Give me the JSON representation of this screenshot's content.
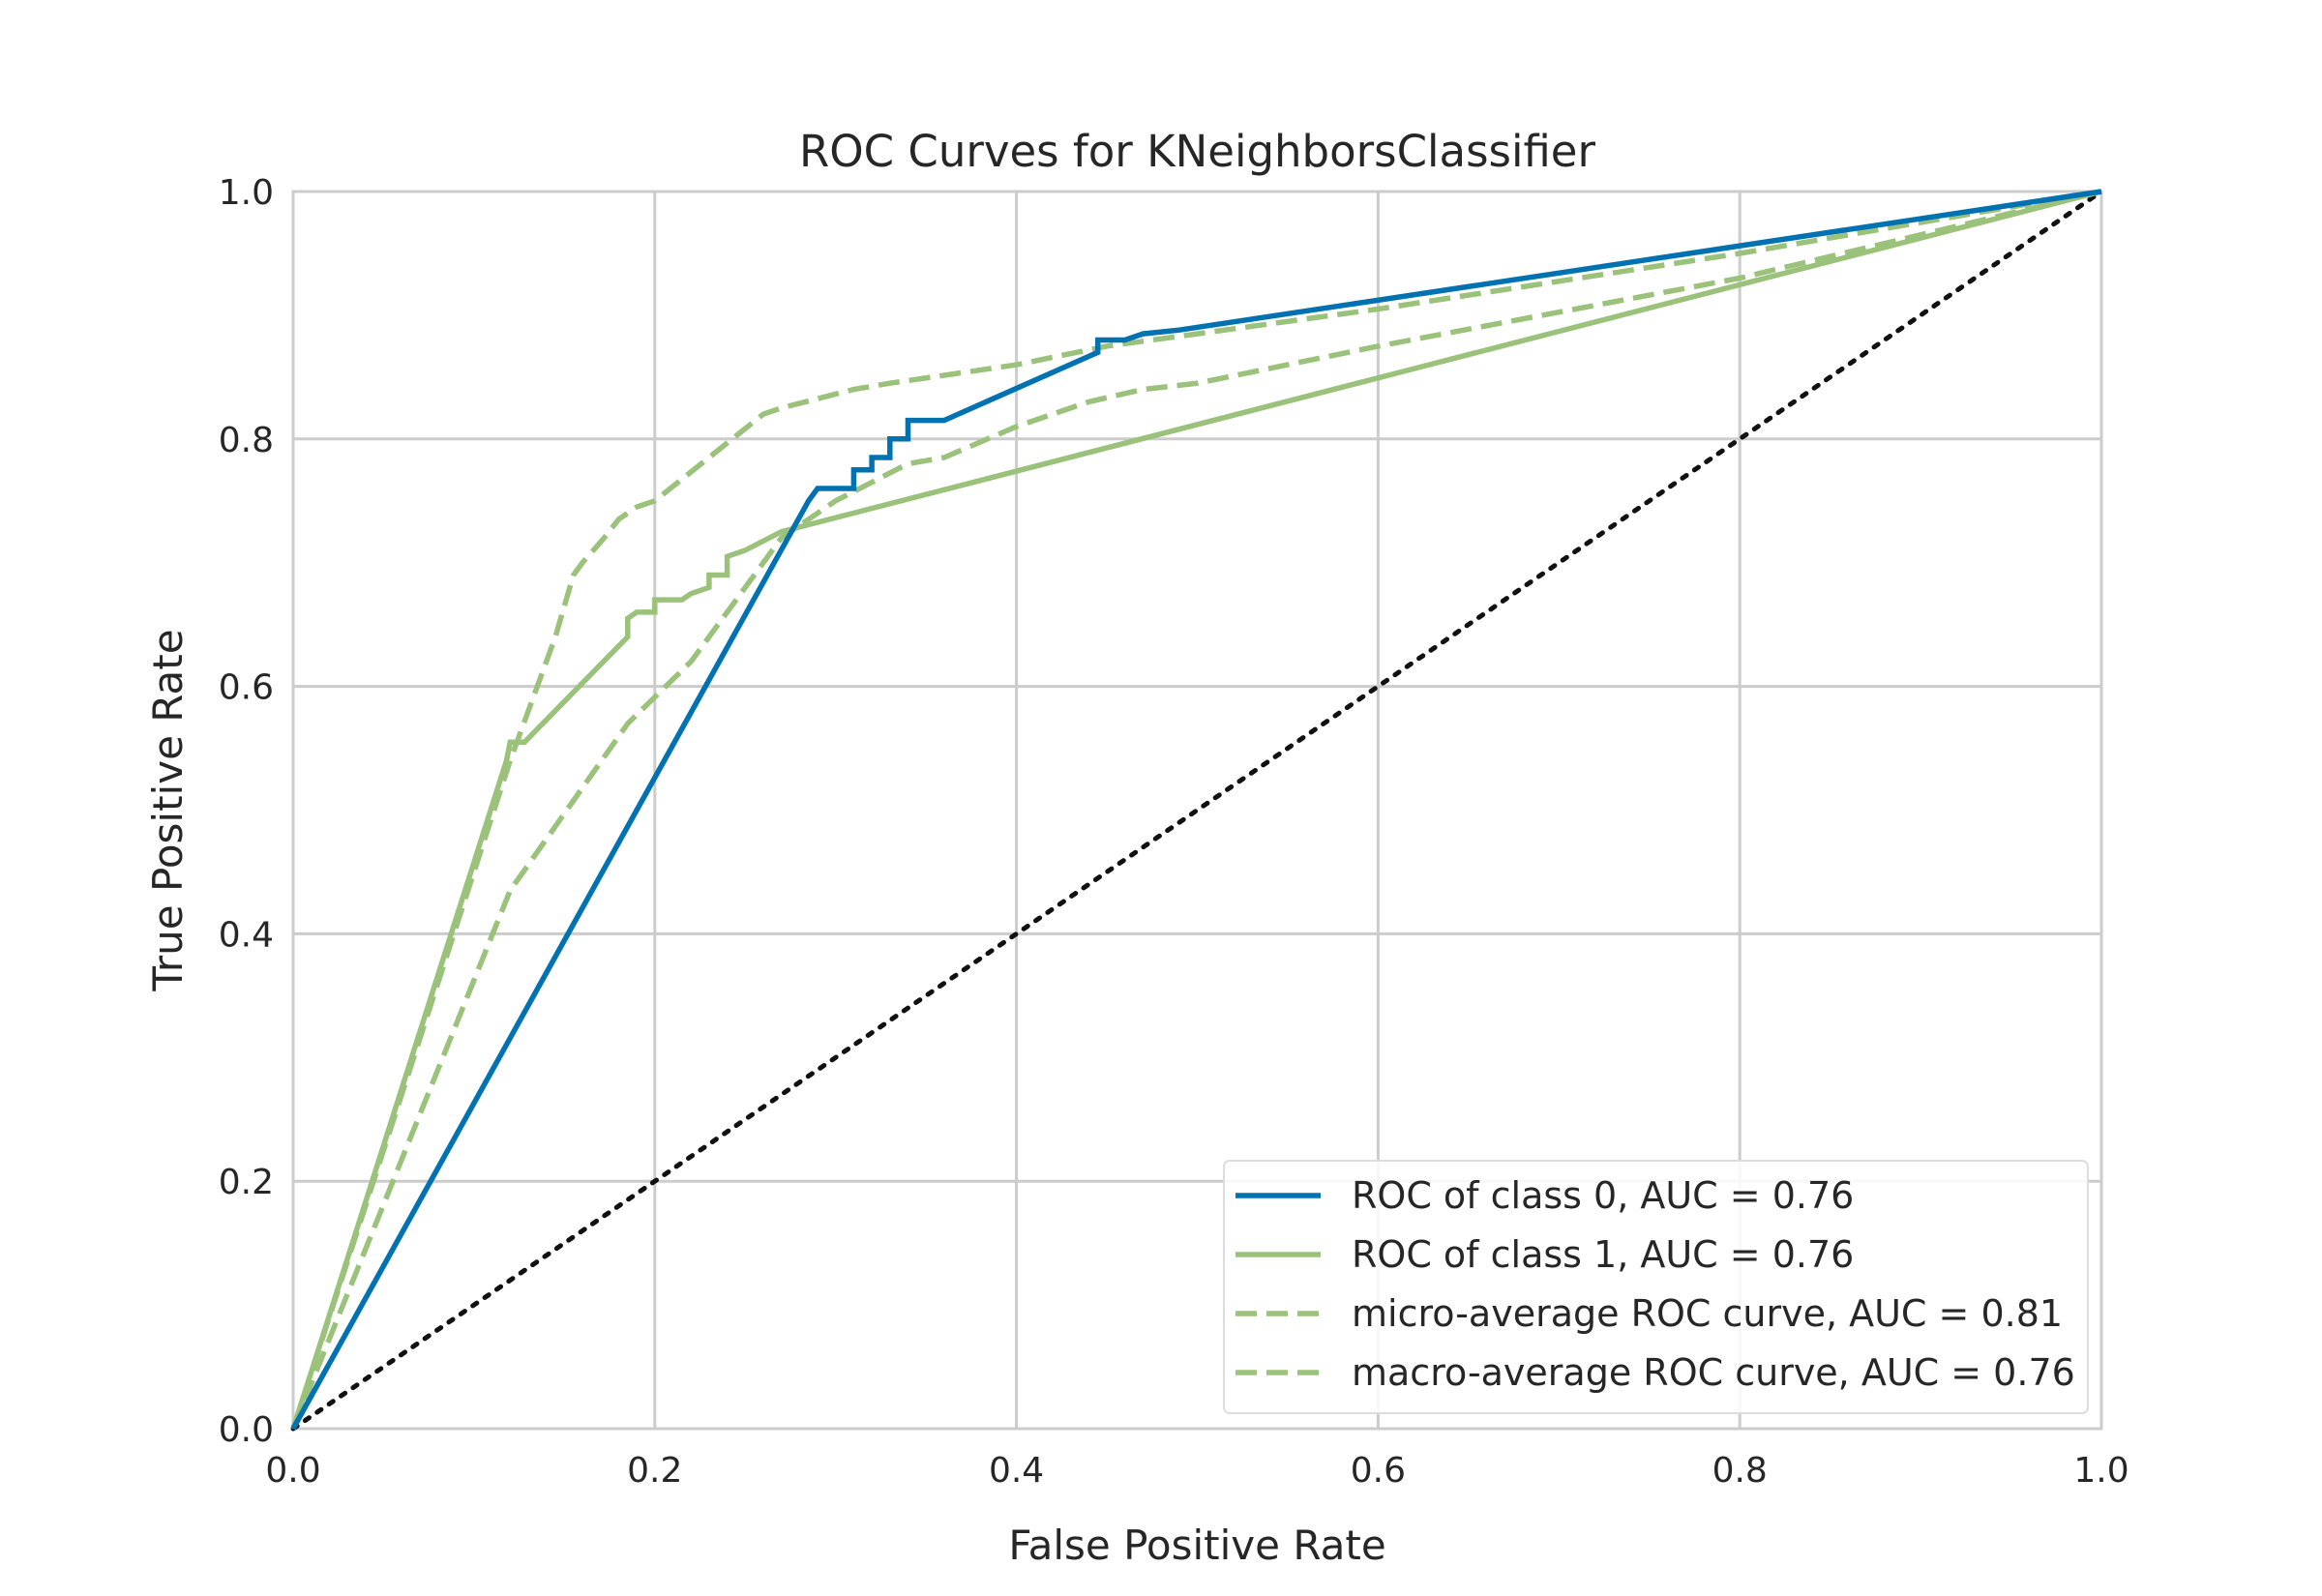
{
  "chart_data": {
    "type": "line",
    "title": "ROC Curves for KNeighborsClassifier",
    "xlabel": "False Positive Rate",
    "ylabel": "True Positive Rate",
    "xlim": [
      0.0,
      1.0
    ],
    "ylim": [
      0.0,
      1.0
    ],
    "xticks": [
      "0.0",
      "0.2",
      "0.4",
      "0.6",
      "0.8",
      "1.0"
    ],
    "yticks": [
      "0.0",
      "0.2",
      "0.4",
      "0.6",
      "0.8",
      "1.0"
    ],
    "grid": true,
    "legend_position": "lower-right",
    "colors": {
      "class0": "#0072B2",
      "green": "#9BC27B",
      "diagonal": "#111111",
      "grid": "#cccccc"
    },
    "series": [
      {
        "name": "ROC of class 0, AUC = 0.76",
        "style": "solid",
        "color": "#0072B2",
        "x": [
          0.0,
          0.285,
          0.29,
          0.31,
          0.31,
          0.31,
          0.31,
          0.32,
          0.32,
          0.33,
          0.33,
          0.34,
          0.34,
          0.35,
          0.35,
          0.36,
          0.445,
          0.445,
          0.46,
          0.47,
          0.49,
          1.0
        ],
        "y": [
          0.0,
          0.75,
          0.76,
          0.76,
          0.765,
          0.77,
          0.775,
          0.775,
          0.785,
          0.785,
          0.8,
          0.8,
          0.815,
          0.815,
          0.815,
          0.815,
          0.87,
          0.88,
          0.88,
          0.885,
          0.888,
          1.0
        ]
      },
      {
        "name": "ROC of class 1, AUC = 0.76",
        "style": "solid",
        "color": "#9BC27B",
        "x": [
          0.0,
          0.118,
          0.12,
          0.128,
          0.185,
          0.185,
          0.19,
          0.2,
          0.2,
          0.215,
          0.22,
          0.23,
          0.23,
          0.24,
          0.24,
          0.25,
          0.27,
          1.0
        ],
        "y": [
          0.0,
          0.54,
          0.555,
          0.555,
          0.64,
          0.655,
          0.66,
          0.66,
          0.67,
          0.67,
          0.675,
          0.68,
          0.69,
          0.69,
          0.705,
          0.71,
          0.725,
          1.0
        ]
      },
      {
        "name": "micro-average ROC curve, AUC = 0.81",
        "style": "dashed",
        "color": "#9BC27B",
        "x": [
          0.0,
          0.12,
          0.13,
          0.145,
          0.155,
          0.16,
          0.172,
          0.18,
          0.19,
          0.2,
          0.26,
          0.27,
          0.31,
          0.33,
          0.4,
          0.45,
          0.6,
          0.8,
          1.0
        ],
        "y": [
          0.0,
          0.54,
          0.58,
          0.64,
          0.69,
          0.7,
          0.72,
          0.735,
          0.745,
          0.75,
          0.82,
          0.825,
          0.84,
          0.845,
          0.86,
          0.875,
          0.905,
          0.95,
          1.0
        ]
      },
      {
        "name": "macro-average ROC curve, AUC = 0.76",
        "style": "dashed",
        "color": "#9BC27B",
        "x": [
          0.0,
          0.12,
          0.185,
          0.22,
          0.25,
          0.27,
          0.3,
          0.34,
          0.36,
          0.4,
          0.44,
          0.47,
          0.5,
          0.6,
          0.8,
          1.0
        ],
        "y": [
          0.0,
          0.435,
          0.57,
          0.62,
          0.68,
          0.72,
          0.75,
          0.78,
          0.785,
          0.81,
          0.83,
          0.84,
          0.845,
          0.875,
          0.93,
          1.0
        ]
      }
    ],
    "legend": [
      {
        "label": "ROC of class 0, AUC = 0.76",
        "style": "solid",
        "color": "#0072B2"
      },
      {
        "label": "ROC of class 1, AUC = 0.76",
        "style": "solid",
        "color": "#9BC27B"
      },
      {
        "label": "micro-average ROC curve, AUC = 0.81",
        "style": "dashed",
        "color": "#9BC27B"
      },
      {
        "label": "macro-average ROC curve, AUC = 0.76",
        "style": "dashed",
        "color": "#9BC27B"
      }
    ],
    "reference_line": {
      "x": [
        0.0,
        1.0
      ],
      "y": [
        0.0,
        1.0
      ],
      "style": "dotted",
      "color": "#111111"
    }
  }
}
